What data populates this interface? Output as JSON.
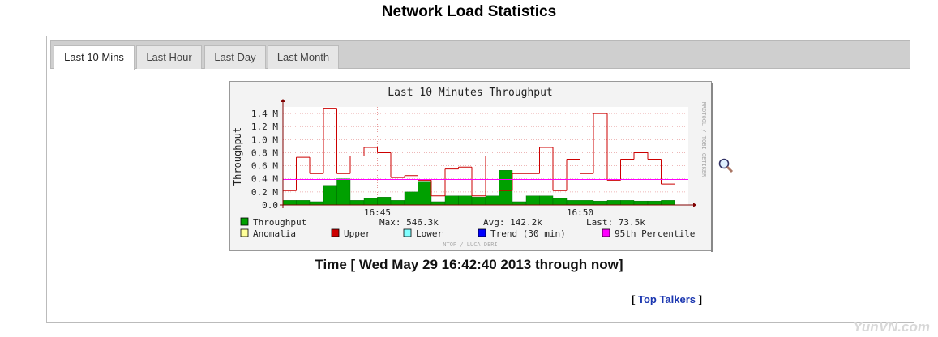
{
  "page": {
    "title": "Network Load Statistics",
    "tabs": [
      "Last 10 Mins",
      "Last Hour",
      "Last Day",
      "Last Month"
    ],
    "time_range": "Time [ Wed May 29 16:42:40 2013 through now]",
    "top_talkers": {
      "open": "[",
      "label": "Top Talkers",
      "close": "]"
    },
    "watermark": "YunVN.com"
  },
  "chart_data": {
    "type": "line",
    "title": "Last 10 Minutes Throughput",
    "ylabel": "Throughput",
    "credit_right": "RRDTOOL / TOBI OETIKER",
    "credit_bottom": "NTOP / LUCA DERI",
    "stats": [
      "Max: 546.3k",
      "Avg: 142.2k",
      "Last: 73.5k"
    ],
    "x": [
      42.67,
      43,
      43.33,
      43.67,
      44,
      44.33,
      44.67,
      45,
      45.33,
      45.67,
      46,
      46.33,
      46.67,
      47,
      47.33,
      47.67,
      48,
      48.33,
      48.67,
      49,
      49.33,
      49.67,
      50,
      50.33,
      50.67,
      51,
      51.33,
      51.67,
      52
    ],
    "xlim": [
      42.67,
      52.67
    ],
    "xticks": [
      {
        "value": 45,
        "label": "16:45"
      },
      {
        "value": 50,
        "label": "16:50"
      }
    ],
    "ylim": [
      0,
      1.5
    ],
    "yticks": [
      {
        "value": 0,
        "label": "0.0"
      },
      {
        "value": 0.2,
        "label": "0.2 M"
      },
      {
        "value": 0.4,
        "label": "0.4 M"
      },
      {
        "value": 0.6,
        "label": "0.6 M"
      },
      {
        "value": 0.8,
        "label": "0.8 M"
      },
      {
        "value": 1.0,
        "label": "1.0 M"
      },
      {
        "value": 1.2,
        "label": "1.2 M"
      },
      {
        "value": 1.4,
        "label": "1.4 M"
      }
    ],
    "grid": true,
    "series": [
      {
        "name": "Throughput",
        "color": "#00a000",
        "style": "area",
        "values": [
          0.07,
          0.07,
          0.05,
          0.3,
          0.4,
          0.07,
          0.1,
          0.12,
          0.07,
          0.2,
          0.35,
          0.05,
          0.14,
          0.14,
          0.12,
          0.14,
          0.53,
          0.05,
          0.14,
          0.14,
          0.1,
          0.07,
          0.07,
          0.06,
          0.07,
          0.07,
          0.06,
          0.06,
          0.07
        ]
      },
      {
        "name": "Anomalia",
        "color": "#ffff99"
      },
      {
        "name": "Upper",
        "color": "#cc0000",
        "style": "step",
        "values": [
          0.22,
          0.73,
          0.48,
          1.48,
          0.48,
          0.75,
          0.88,
          0.8,
          0.42,
          0.45,
          0.38,
          0.14,
          0.55,
          0.58,
          0.14,
          0.75,
          0.22,
          0.48,
          0.48,
          0.88,
          0.22,
          0.7,
          0.48,
          1.4,
          0.38,
          0.7,
          0.8,
          0.7,
          0.32
        ]
      },
      {
        "name": "Lower",
        "color": "#80ffff"
      },
      {
        "name": "Trend (30 min)",
        "color": "#0000ff"
      },
      {
        "name": "95th Percentile",
        "color": "#ff00ff",
        "style": "hline",
        "value": 0.39
      }
    ]
  }
}
